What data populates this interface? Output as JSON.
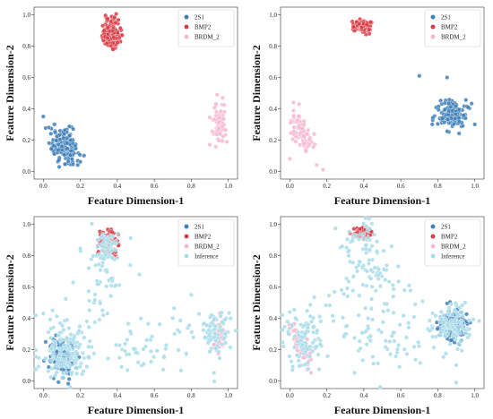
{
  "colors": {
    "2S1": "#3f7fb8",
    "BMP2": "#d93a43",
    "BRDM_2": "#f4b8d0",
    "Inference": "#a8dcea"
  },
  "chart_data": [
    {
      "type": "scatter",
      "xlabel": "Feature Dimension-1",
      "ylabel": "Feature Dimension-2",
      "xlim": [
        0.0,
        1.0
      ],
      "ylim": [
        0.0,
        1.0
      ],
      "xticks": [
        "0.0",
        "0.2",
        "0.4",
        "0.6",
        "0.8",
        "1.0"
      ],
      "yticks": [
        "0.0",
        "0.2",
        "0.4",
        "0.6",
        "0.8",
        "1.0"
      ],
      "legend": [
        "2S1",
        "BMP2",
        "BRDM_2"
      ],
      "legend_position": "top-right",
      "series": [
        {
          "name": "2S1",
          "clusters": [
            {
              "cx": 0.11,
              "cy": 0.17,
              "sx": 0.035,
              "sy": 0.055,
              "n": 160,
              "tilt": -1.2
            }
          ],
          "points": [
            [
              0.0,
              0.35
            ],
            [
              0.03,
              0.28
            ],
            [
              0.06,
              0.3
            ],
            [
              0.2,
              0.06
            ],
            [
              0.22,
              0.1
            ]
          ]
        },
        {
          "name": "BMP2",
          "clusters": [
            {
              "cx": 0.37,
              "cy": 0.88,
              "sx": 0.025,
              "sy": 0.045,
              "n": 130,
              "tilt": 0
            }
          ],
          "points": []
        },
        {
          "name": "BRDM_2",
          "clusters": [
            {
              "cx": 0.95,
              "cy": 0.3,
              "sx": 0.02,
              "sy": 0.055,
              "n": 70,
              "tilt": 0
            }
          ],
          "points": [
            [
              0.94,
              0.49
            ],
            [
              0.97,
              0.47
            ],
            [
              0.9,
              0.17
            ]
          ]
        }
      ]
    },
    {
      "type": "scatter",
      "xlabel": "Feature Dimension-1",
      "ylabel": "Feature Dimension-2",
      "xlim": [
        0.0,
        1.0
      ],
      "ylim": [
        0.0,
        1.0
      ],
      "xticks": [
        "0.0",
        "0.2",
        "0.4",
        "0.6",
        "0.8",
        "1.0"
      ],
      "yticks": [
        "0.0",
        "0.2",
        "0.4",
        "0.6",
        "0.8",
        "1.0"
      ],
      "legend": [
        "2S1",
        "BMP2",
        "BRDM_2"
      ],
      "legend_position": "top-right",
      "series": [
        {
          "name": "2S1",
          "clusters": [
            {
              "cx": 0.88,
              "cy": 0.36,
              "sx": 0.035,
              "sy": 0.045,
              "n": 170,
              "tilt": 0
            }
          ],
          "points": [
            [
              0.7,
              0.61
            ],
            [
              0.85,
              0.6
            ],
            [
              0.77,
              0.3
            ],
            [
              1.0,
              0.3
            ]
          ]
        },
        {
          "name": "BMP2",
          "clusters": [
            {
              "cx": 0.39,
              "cy": 0.93,
              "sx": 0.022,
              "sy": 0.018,
              "n": 110,
              "tilt": 0
            }
          ],
          "points": []
        },
        {
          "name": "BRDM_2",
          "clusters": [
            {
              "cx": 0.07,
              "cy": 0.24,
              "sx": 0.028,
              "sy": 0.065,
              "n": 90,
              "tilt": -2.2
            }
          ],
          "points": [
            [
              0.02,
              0.44
            ],
            [
              0.05,
              0.43
            ],
            [
              0.18,
              0.01
            ],
            [
              0.0,
              0.08
            ]
          ]
        }
      ]
    },
    {
      "type": "scatter",
      "xlabel": "Feature Dimension-1",
      "ylabel": "Feature Dimension-2",
      "xlim": [
        0.0,
        1.0
      ],
      "ylim": [
        0.0,
        1.0
      ],
      "xticks": [
        "0.0",
        "0.2",
        "0.4",
        "0.6",
        "0.8",
        "1.0"
      ],
      "yticks": [
        "0.0",
        "0.2",
        "0.4",
        "0.6",
        "0.8",
        "1.0"
      ],
      "legend": [
        "2S1",
        "BMP2",
        "BRDM_2",
        "Inference"
      ],
      "legend_position": "top-right",
      "series": [
        {
          "name": "2S1",
          "clusters": [
            {
              "cx": 0.1,
              "cy": 0.15,
              "sx": 0.035,
              "sy": 0.06,
              "n": 130,
              "tilt": -1.0
            }
          ],
          "points": []
        },
        {
          "name": "BMP2",
          "clusters": [
            {
              "cx": 0.35,
              "cy": 0.88,
              "sx": 0.03,
              "sy": 0.05,
              "n": 70,
              "tilt": 0
            }
          ],
          "points": []
        },
        {
          "name": "BRDM_2",
          "clusters": [
            {
              "cx": 0.95,
              "cy": 0.3,
              "sx": 0.02,
              "sy": 0.05,
              "n": 40,
              "tilt": 0
            }
          ],
          "points": []
        },
        {
          "name": "Inference",
          "clusters": [
            {
              "cx": 0.12,
              "cy": 0.2,
              "sx": 0.06,
              "sy": 0.09,
              "n": 130,
              "tilt": 0
            },
            {
              "cx": 0.35,
              "cy": 0.86,
              "sx": 0.04,
              "sy": 0.06,
              "n": 60,
              "tilt": 0
            },
            {
              "cx": 0.93,
              "cy": 0.31,
              "sx": 0.04,
              "sy": 0.07,
              "n": 70,
              "tilt": 0
            },
            {
              "cx": 0.5,
              "cy": 0.22,
              "sx": 0.25,
              "sy": 0.1,
              "n": 80,
              "tilt": 0
            },
            {
              "cx": 0.3,
              "cy": 0.6,
              "sx": 0.06,
              "sy": 0.12,
              "n": 40,
              "tilt": 0
            }
          ],
          "points": [
            [
              0.0,
              0.43
            ],
            [
              0.05,
              0.45
            ],
            [
              0.47,
              0.74
            ],
            [
              0.52,
              0.68
            ],
            [
              0.7,
              0.4
            ],
            [
              0.8,
              0.55
            ]
          ]
        }
      ]
    },
    {
      "type": "scatter",
      "xlabel": "Feature Dimension-1",
      "ylabel": "Feature Dimension-2",
      "xlim": [
        0.0,
        1.0
      ],
      "ylim": [
        0.0,
        1.0
      ],
      "xticks": [
        "0.0",
        "0.2",
        "0.4",
        "0.6",
        "0.8",
        "1.0"
      ],
      "yticks": [
        "0.0",
        "0.2",
        "0.4",
        "0.6",
        "0.8",
        "1.0"
      ],
      "legend": [
        "2S1",
        "BMP2",
        "BRDM_2",
        "Inference"
      ],
      "legend_position": "top-right",
      "series": [
        {
          "name": "2S1",
          "clusters": [
            {
              "cx": 0.88,
              "cy": 0.36,
              "sx": 0.035,
              "sy": 0.045,
              "n": 150,
              "tilt": 0
            }
          ],
          "points": []
        },
        {
          "name": "BMP2",
          "clusters": [
            {
              "cx": 0.39,
              "cy": 0.95,
              "sx": 0.022,
              "sy": 0.02,
              "n": 70,
              "tilt": 0
            }
          ],
          "points": []
        },
        {
          "name": "BRDM_2",
          "clusters": [
            {
              "cx": 0.07,
              "cy": 0.2,
              "sx": 0.025,
              "sy": 0.07,
              "n": 60,
              "tilt": -2.0
            }
          ],
          "points": []
        },
        {
          "name": "Inference",
          "clusters": [
            {
              "cx": 0.08,
              "cy": 0.25,
              "sx": 0.05,
              "sy": 0.1,
              "n": 90,
              "tilt": 0
            },
            {
              "cx": 0.88,
              "cy": 0.36,
              "sx": 0.05,
              "sy": 0.06,
              "n": 90,
              "tilt": 0
            },
            {
              "cx": 0.4,
              "cy": 0.88,
              "sx": 0.05,
              "sy": 0.08,
              "n": 50,
              "tilt": 0
            },
            {
              "cx": 0.45,
              "cy": 0.65,
              "sx": 0.1,
              "sy": 0.12,
              "n": 50,
              "tilt": 0
            },
            {
              "cx": 0.5,
              "cy": 0.3,
              "sx": 0.22,
              "sy": 0.12,
              "n": 90,
              "tilt": 0
            }
          ],
          "points": [
            [
              0.0,
              0.44
            ],
            [
              0.1,
              0.36
            ],
            [
              0.62,
              0.58
            ],
            [
              0.55,
              0.86
            ],
            [
              0.9,
              0.1
            ],
            [
              0.35,
              0.05
            ],
            [
              0.62,
              0.2
            ]
          ]
        }
      ]
    }
  ]
}
